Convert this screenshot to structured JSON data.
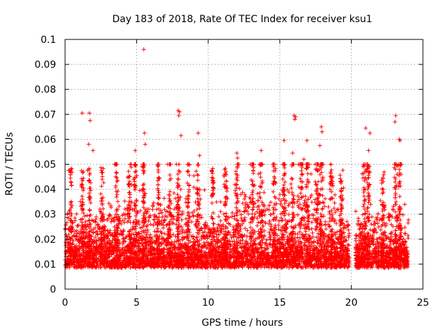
{
  "chart_data": {
    "type": "scatter",
    "title": "Day 183 of 2018, Rate Of TEC Index for receiver ksu1",
    "xlabel": "GPS time / hours",
    "ylabel": "ROTI / TECUs",
    "xlim": [
      0,
      25
    ],
    "ylim": [
      0,
      0.1
    ],
    "x_ticks": [
      "0",
      "5",
      "10",
      "15",
      "20",
      "25"
    ],
    "y_ticks": [
      "0",
      "0.01",
      "0.02",
      "0.03",
      "0.04",
      "0.05",
      "0.06",
      "0.07",
      "0.08",
      "0.09",
      "0.1"
    ],
    "grid": true,
    "marker": "+",
    "series_color": "#ff0000",
    "outliers": [
      {
        "x": 5.5,
        "y": 0.096
      },
      {
        "x": 1.2,
        "y": 0.0705
      },
      {
        "x": 1.7,
        "y": 0.0705
      },
      {
        "x": 1.75,
        "y": 0.0675
      },
      {
        "x": 7.9,
        "y": 0.0715
      },
      {
        "x": 8.0,
        "y": 0.071
      },
      {
        "x": 7.95,
        "y": 0.0695
      },
      {
        "x": 16.0,
        "y": 0.0695
      },
      {
        "x": 16.1,
        "y": 0.069
      },
      {
        "x": 16.05,
        "y": 0.068
      },
      {
        "x": 23.1,
        "y": 0.0695
      },
      {
        "x": 23.05,
        "y": 0.067
      },
      {
        "x": 21.0,
        "y": 0.0645
      },
      {
        "x": 17.9,
        "y": 0.065
      },
      {
        "x": 17.95,
        "y": 0.063
      },
      {
        "x": 9.3,
        "y": 0.0625
      },
      {
        "x": 5.55,
        "y": 0.0625
      },
      {
        "x": 21.3,
        "y": 0.0625
      },
      {
        "x": 23.35,
        "y": 0.06
      },
      {
        "x": 23.4,
        "y": 0.0595
      },
      {
        "x": 16.9,
        "y": 0.0595
      },
      {
        "x": 15.3,
        "y": 0.0595
      },
      {
        "x": 8.1,
        "y": 0.0615
      },
      {
        "x": 1.65,
        "y": 0.058
      },
      {
        "x": 5.6,
        "y": 0.058
      },
      {
        "x": 12.0,
        "y": 0.0545
      },
      {
        "x": 13.7,
        "y": 0.0555
      },
      {
        "x": 21.2,
        "y": 0.0555
      },
      {
        "x": 1.95,
        "y": 0.0555
      },
      {
        "x": 4.9,
        "y": 0.0555
      },
      {
        "x": 9.4,
        "y": 0.0535
      },
      {
        "x": 12.05,
        "y": 0.0525
      },
      {
        "x": 21.15,
        "y": 0.049
      },
      {
        "x": 15.9,
        "y": 0.0545
      },
      {
        "x": 17.8,
        "y": 0.0575
      }
    ]
  }
}
